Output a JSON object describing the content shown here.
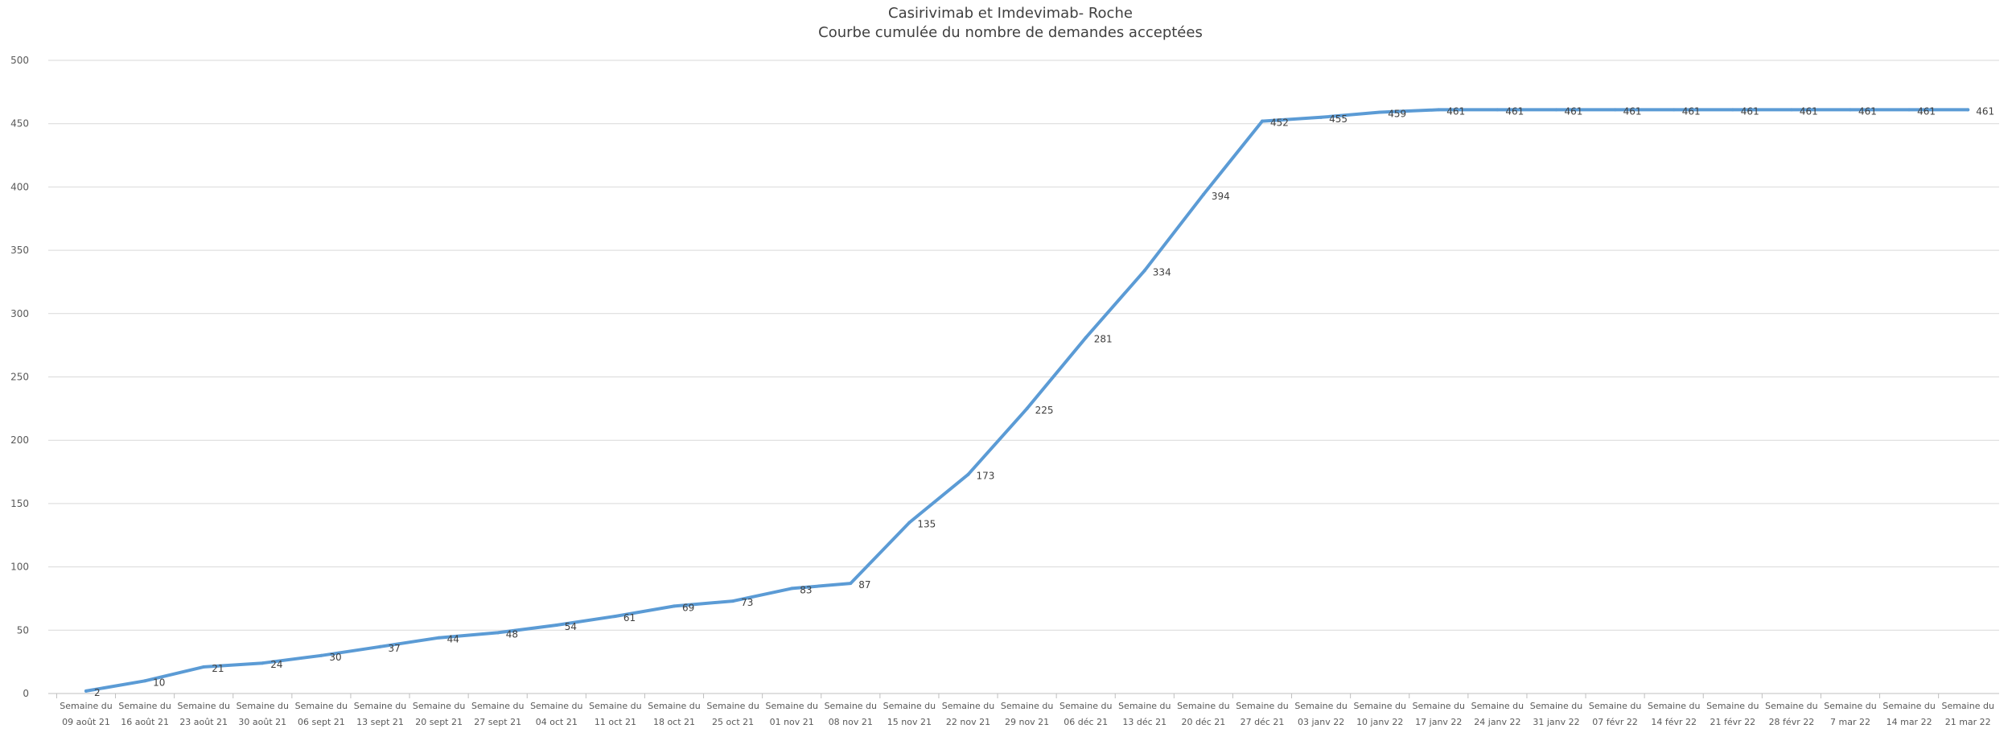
{
  "chart_data": {
    "type": "line",
    "title": "Casirivimab et Imdevimab-  Roche",
    "subtitle": "Courbe cumulée du nombre de demandes acceptées",
    "ylim": [
      0,
      500
    ],
    "yticks": [
      0,
      50,
      100,
      150,
      200,
      250,
      300,
      350,
      400,
      450,
      500
    ],
    "grid": true,
    "categories": [
      "Semaine du 09 août 21",
      "Semaine du 16 août 21",
      "Semaine du 23 août 21",
      "Semaine du 30 août 21",
      "Semaine du 06 sept 21",
      "Semaine du 13 sept 21",
      "Semaine du 20 sept 21",
      "Semaine du 27 sept 21",
      "Semaine du 04 oct 21",
      "Semaine du 11 oct 21",
      "Semaine du 18 oct 21",
      "Semaine du 25 oct 21",
      "Semaine du 01 nov 21",
      "Semaine du 08 nov 21",
      "Semaine du 15 nov 21",
      "Semaine du 22 nov 21",
      "Semaine du 29 nov 21",
      "Semaine du 06 déc 21",
      "Semaine du 13 déc 21",
      "Semaine du 20 déc 21",
      "Semaine du 27 déc 21",
      "Semaine du 03 janv 22",
      "Semaine du 10 janv 22",
      "Semaine du 17 janv 22",
      "Semaine du 24 janv 22",
      "Semaine du 31 janv 22",
      "Semaine du 07 févr 22",
      "Semaine du 14 févr 22",
      "Semaine du 21 févr 22",
      "Semaine du 28 févr 22",
      "Semaine du 7 mar 22",
      "Semaine du 14 mar 22",
      "Semaine du 21 mar 22"
    ],
    "series": [
      {
        "color": "#5B9BD5",
        "values": [
          2,
          10,
          21,
          24,
          30,
          37,
          44,
          48,
          54,
          61,
          69,
          73,
          83,
          87,
          135,
          173,
          225,
          281,
          334,
          394,
          452,
          455,
          459,
          461,
          461,
          461,
          461,
          461,
          461,
          461,
          461,
          461,
          461
        ]
      }
    ]
  }
}
